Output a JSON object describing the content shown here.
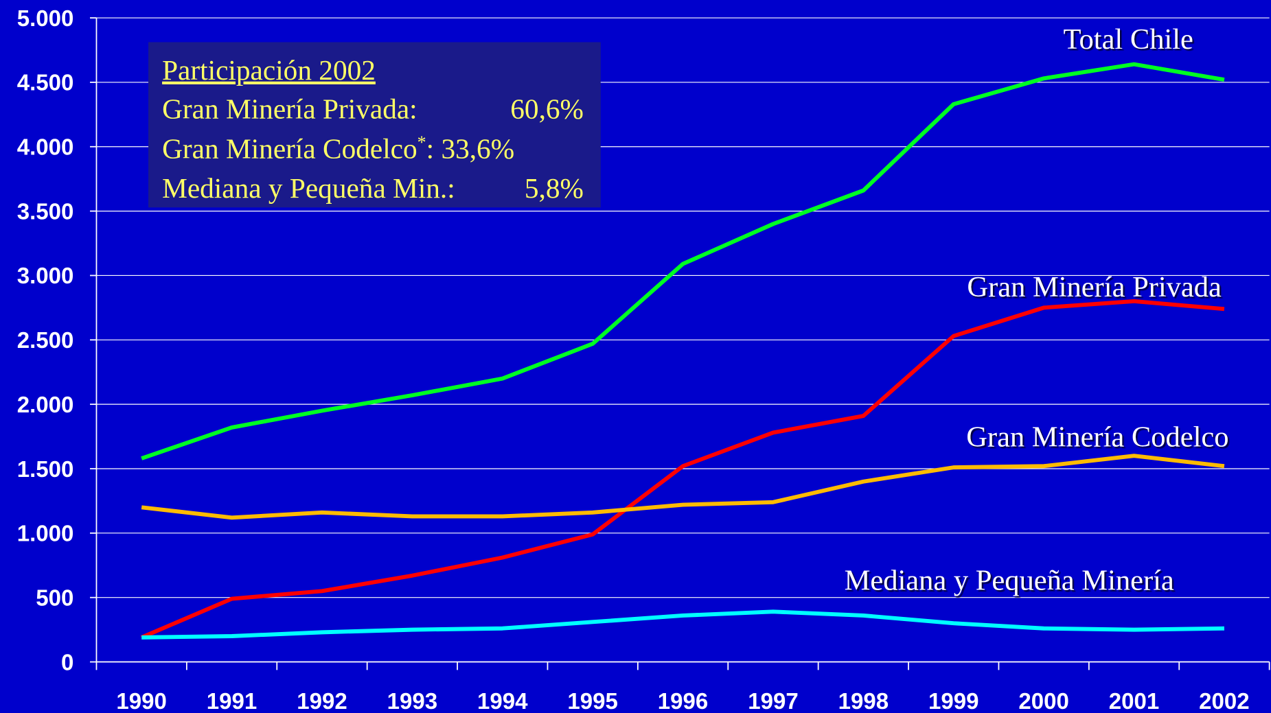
{
  "chart_data": {
    "type": "line",
    "categories": [
      "1990",
      "1991",
      "1992",
      "1993",
      "1994",
      "1995",
      "1996",
      "1997",
      "1998",
      "1999",
      "2000",
      "2001",
      "2002"
    ],
    "series": [
      {
        "name": "Total Chile",
        "color": "#00ff22",
        "values": [
          1580,
          1820,
          1950,
          2070,
          2200,
          2470,
          3090,
          3400,
          3660,
          4330,
          4530,
          4640,
          4520
        ]
      },
      {
        "name": "Gran Minería Privada",
        "color": "#ff0000",
        "values": [
          190,
          490,
          550,
          670,
          810,
          990,
          1520,
          1780,
          1910,
          2530,
          2750,
          2800,
          2740
        ]
      },
      {
        "name": "Gran Minería Codelco",
        "color": "#ffbb00",
        "values": [
          1200,
          1120,
          1160,
          1130,
          1130,
          1160,
          1220,
          1240,
          1400,
          1510,
          1520,
          1600,
          1520
        ]
      },
      {
        "name": "Mediana y Pequeña Minería",
        "color": "#00ffff",
        "values": [
          190,
          200,
          230,
          250,
          260,
          310,
          360,
          390,
          360,
          300,
          260,
          250,
          260
        ]
      }
    ],
    "ylim": [
      0,
      5000
    ],
    "yticks": [
      0,
      500,
      {
        "value": 1000,
        "label": "1.000"
      },
      {
        "value": 1500,
        "label": "1.500"
      },
      {
        "value": 2000,
        "label": "2.000"
      },
      {
        "value": 2500,
        "label": "2.500"
      },
      {
        "value": 3000,
        "label": "3.000"
      },
      {
        "value": 3500,
        "label": "3.500"
      },
      {
        "value": 4000,
        "label": "4.000"
      },
      {
        "value": 4500,
        "label": "4.500"
      },
      {
        "value": 5000,
        "label": "5.000"
      }
    ],
    "grid": true,
    "annotation": {
      "title": "Participación 2002",
      "lines": [
        {
          "label": "Gran Minería Privada:",
          "value": "60,6%"
        },
        {
          "label": "Gran Minería Codelco",
          "sup": "*",
          "value": ":   33,6%"
        },
        {
          "label": "Mediana y Pequeña Min.:",
          "value": "5,8%"
        }
      ]
    }
  }
}
